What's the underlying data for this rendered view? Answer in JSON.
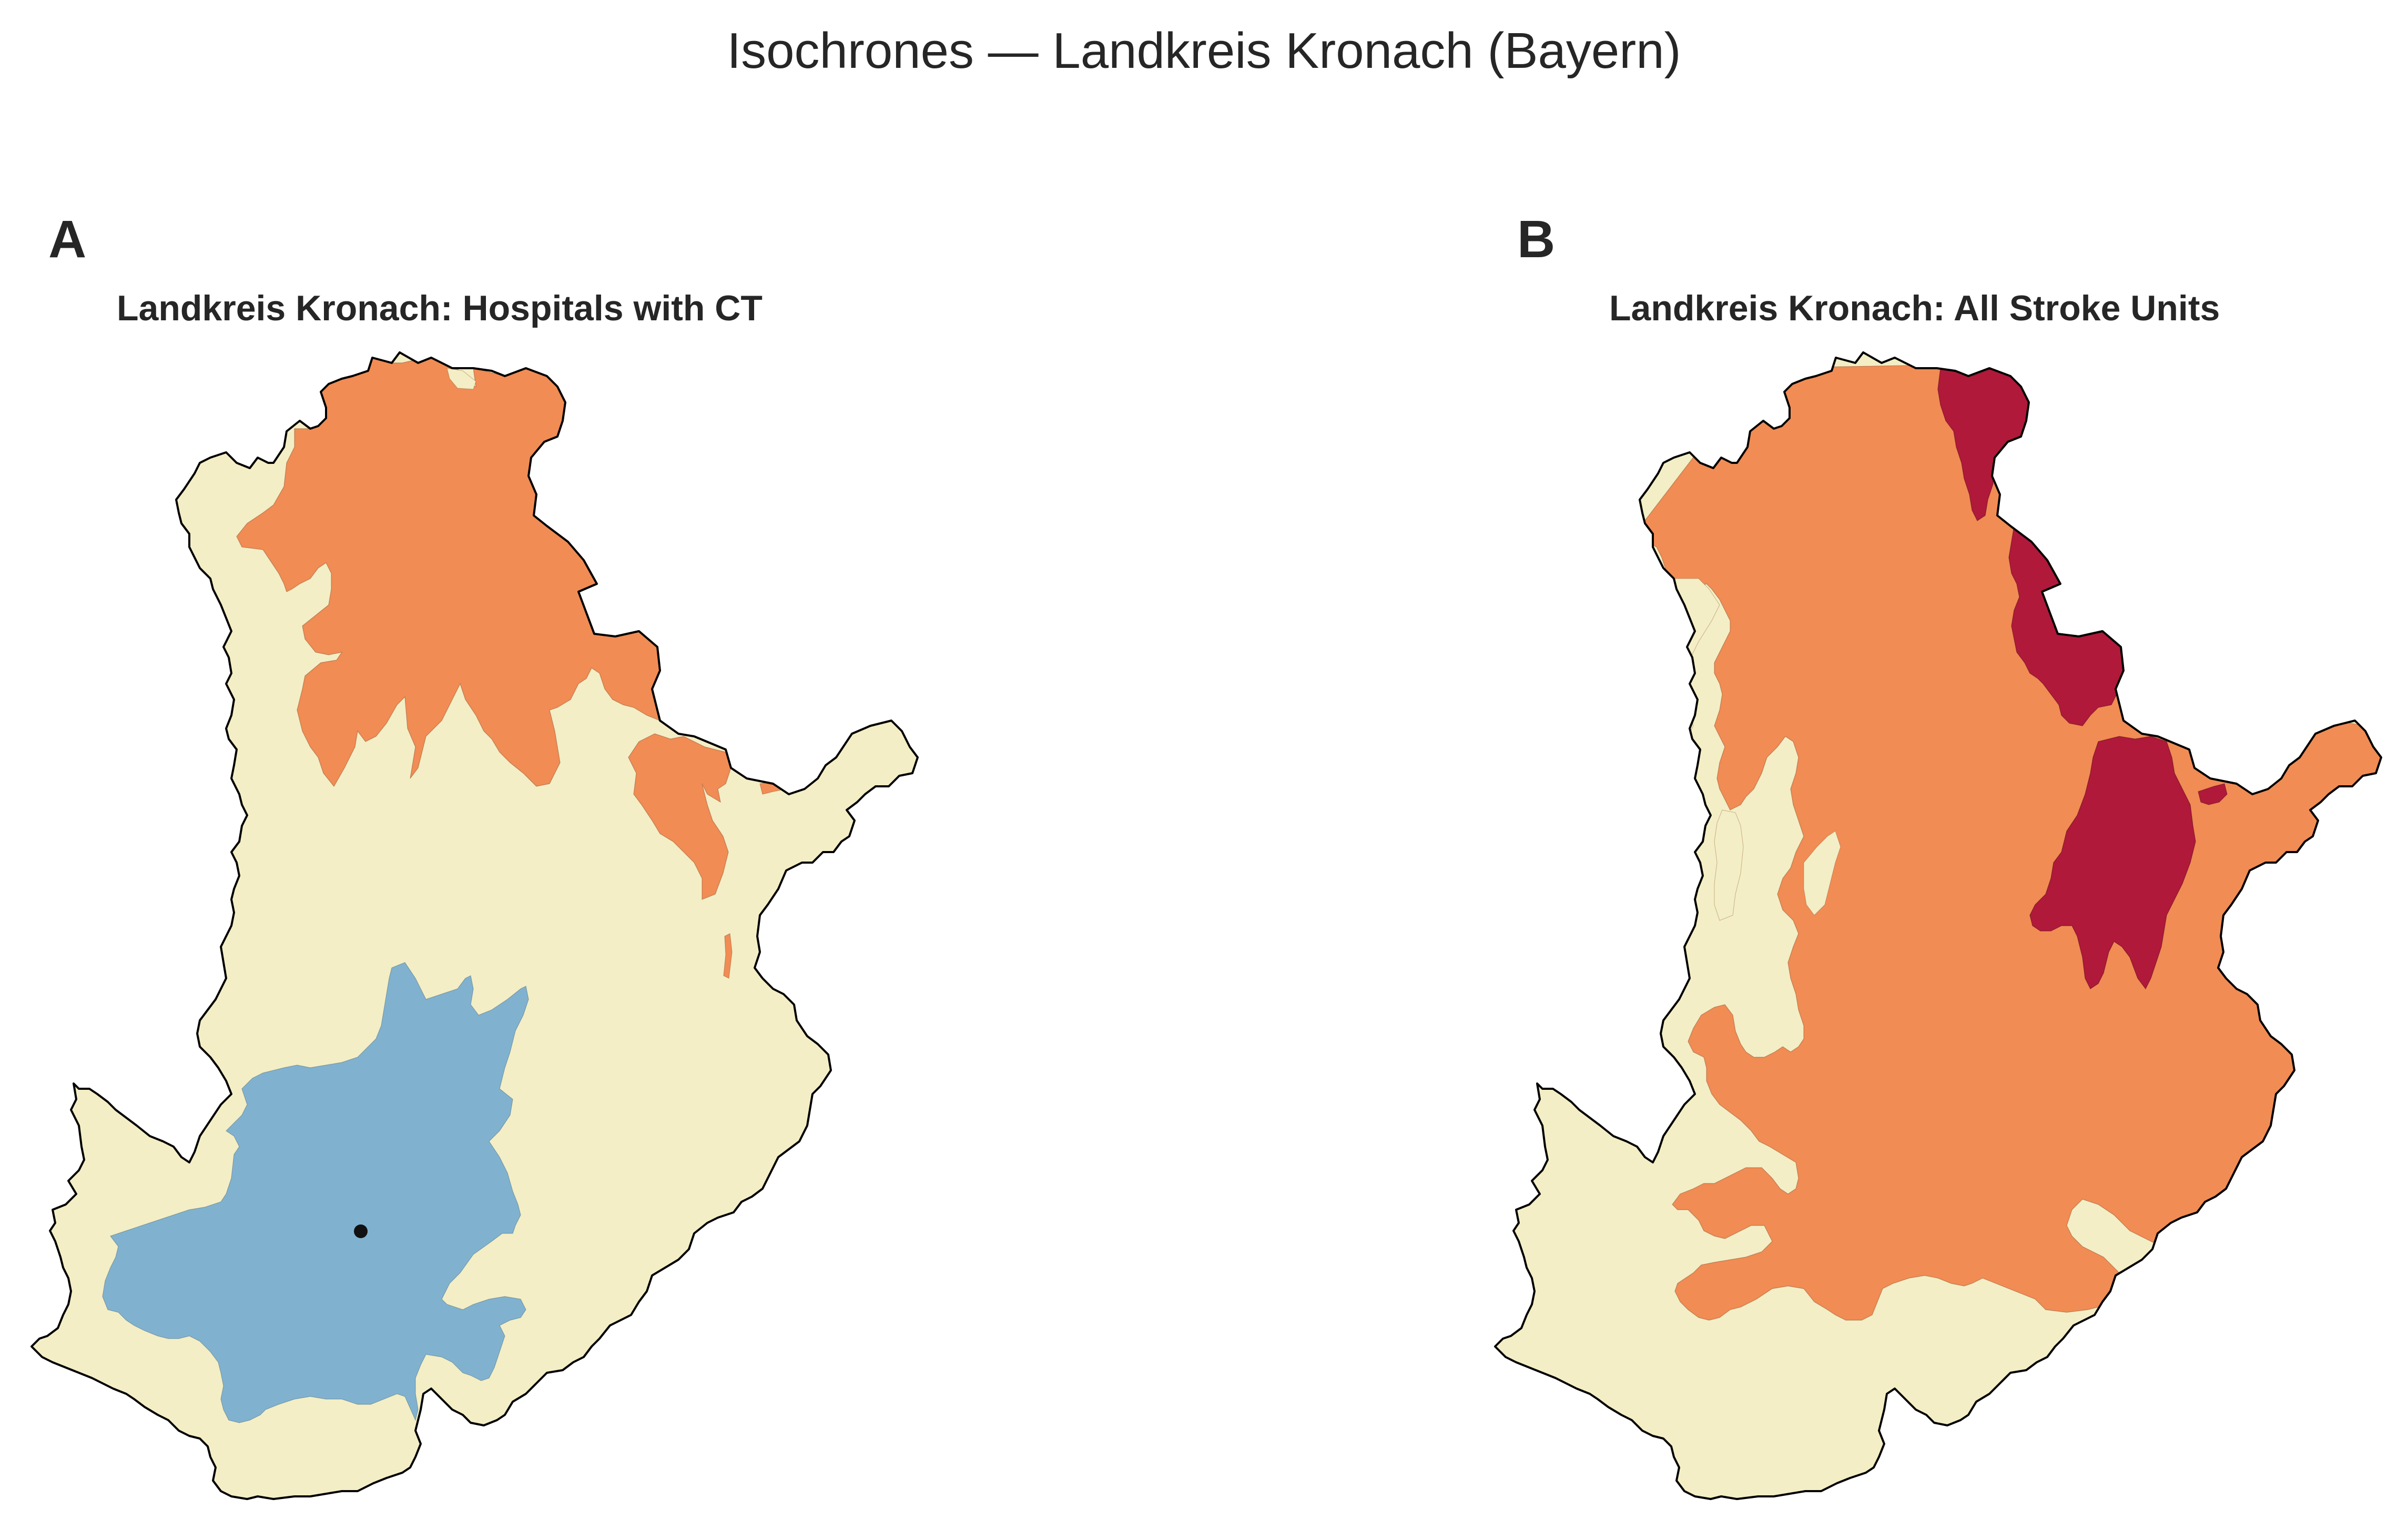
{
  "figure": {
    "title": "Isochrones — Landkreis Kronach (Bayern)"
  },
  "panels": [
    {
      "letter": "A",
      "title": "Landkreis Kronach: Hospitals with CT",
      "zones": [
        "far",
        "mid",
        "near"
      ],
      "has_marker": true
    },
    {
      "letter": "B",
      "title": "Landkreis Kronach: All Stroke Units",
      "zones": [
        "far",
        "mid",
        "close"
      ],
      "has_marker": false
    }
  ],
  "colors": {
    "background": "#ffffff",
    "far": "#f3eec5",
    "mid": "#f18c54",
    "near": "#80b2d0",
    "close": "#b0193a",
    "boundary": "#000000",
    "marker": "#111111"
  }
}
